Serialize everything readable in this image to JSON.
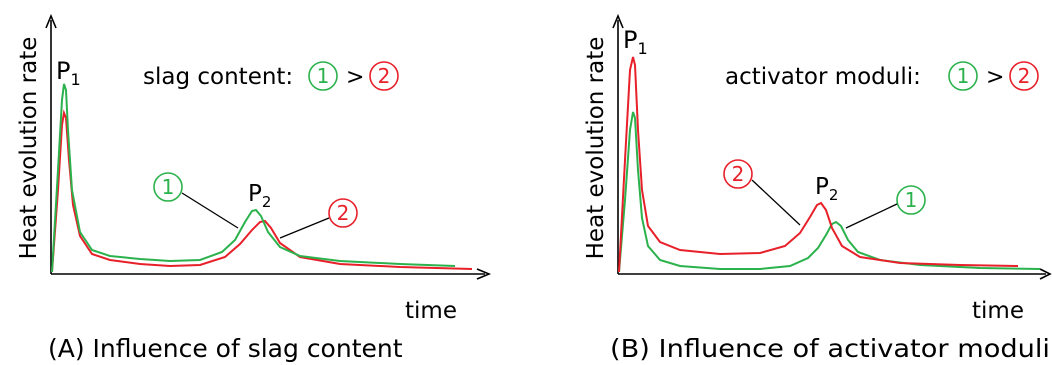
{
  "colors": {
    "green": "#2bb24c",
    "red": "#e8202a"
  },
  "panels": [
    {
      "y_axis_label": "Heat evolution rate",
      "x_axis_label": "time",
      "caption": "(A) Influence of slag content",
      "legend": {
        "label": "slag content:",
        "left_marker": "1",
        "comparator": ">",
        "right_marker": "2"
      },
      "peak_labels": {
        "p1_main": "P",
        "p1_sub": "1",
        "p2_main": "P",
        "p2_sub": "2"
      },
      "callouts": {
        "green": "1",
        "red": "2"
      }
    },
    {
      "y_axis_label": "Heat evolution rate",
      "x_axis_label": "time",
      "caption": "(B) Influence of activator moduli",
      "legend": {
        "label": "activator moduli:",
        "left_marker": "1",
        "comparator": ">",
        "right_marker": "2"
      },
      "peak_labels": {
        "p1_main": "P",
        "p1_sub": "1",
        "p2_main": "P",
        "p2_sub": "2"
      },
      "callouts": {
        "green": "1",
        "red": "2"
      }
    }
  ]
}
